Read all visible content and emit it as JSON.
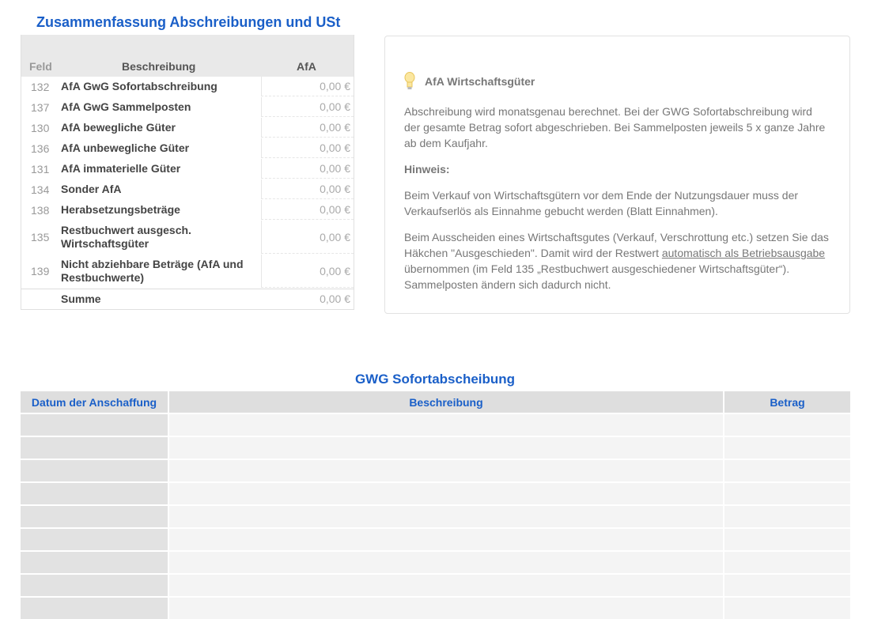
{
  "summary": {
    "title": "Zusammenfassung Abschreibungen und USt",
    "headers": {
      "field": "Feld",
      "description": "Beschreibung",
      "afa": "AfA"
    },
    "rows": [
      {
        "field": "132",
        "description": "AfA GwG Sofortabschreibung",
        "value": "0,00 €"
      },
      {
        "field": "137",
        "description": "AfA GwG Sammelposten",
        "value": "0,00 €"
      },
      {
        "field": "130",
        "description": "AfA bewegliche Güter",
        "value": "0,00 €"
      },
      {
        "field": "136",
        "description": "AfA unbewegliche Güter",
        "value": "0,00 €"
      },
      {
        "field": "131",
        "description": "AfA immaterielle Güter",
        "value": "0,00 €"
      },
      {
        "field": "134",
        "description": "Sonder AfA",
        "value": "0,00 €"
      },
      {
        "field": "138",
        "description": "Herabsetzungsbeträge",
        "value": "0,00 €"
      },
      {
        "field": "135",
        "description": "Restbuchwert ausgesch. Wirtschaftsgüter",
        "value": "0,00 €"
      },
      {
        "field": "139",
        "description": "Nicht abziehbare Beträge (AfA und Restbuchwerte)",
        "value": "0,00 €"
      }
    ],
    "total": {
      "label": "Summe",
      "value": "0,00 €"
    }
  },
  "info": {
    "icon": "lightbulb-icon",
    "title": "AfA Wirtschaftsgüter",
    "p1": "Abschreibung wird monatsgenau berechnet. Bei der GWG Sofortabschreibung wird der gesamte Betrag sofort abgeschrieben. Bei Sammelposten jeweils 5 x ganze Jahre ab dem Kaufjahr.",
    "hint": "Hinweis:",
    "p2": "Beim Verkauf von Wirtschaftsgütern vor dem Ende der Nutzungsdauer muss der Verkaufserlös als Einnahme gebucht werden (Blatt Einnahmen).",
    "p3a": "Beim Ausscheiden eines Wirtschaftsgutes (Verkauf, Verschrottung etc.) setzen Sie das Häkchen \"Ausgeschieden\". Damit wird der Restwert ",
    "p3link": "automatisch als Betriebsausgabe",
    "p3b": " übernommen (im Feld 135 „Restbuchwert ausgeschiedener Wirtschaftsgüter“). Sammelposten ändern sich dadurch nicht."
  },
  "gwg": {
    "title": "GWG Sofortabscheibung",
    "headers": [
      "Datum der Anschaffung",
      "Beschreibung",
      "Betrag"
    ]
  },
  "colors": {
    "accent": "#1a5fc8"
  }
}
